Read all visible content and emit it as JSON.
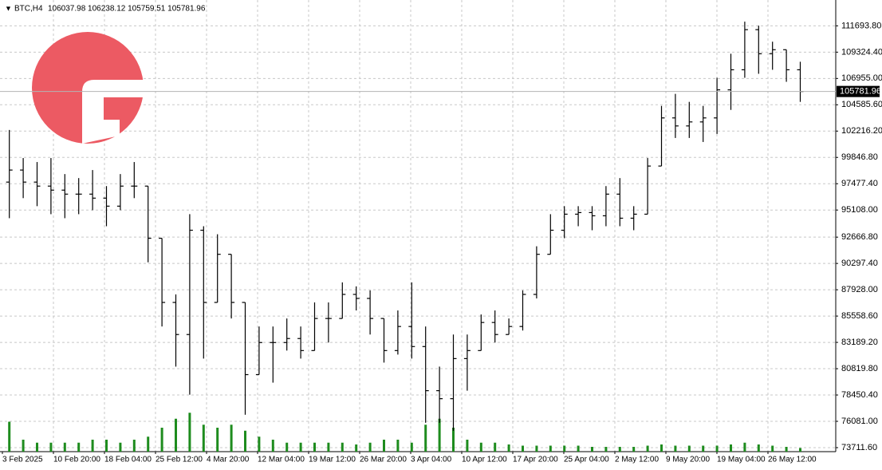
{
  "chart_data": {
    "type": "ohlc",
    "title": "BTC,H4",
    "ohlc_label": "106037.98 106238.12 105759.51 105781.96",
    "x_labels": [
      "3 Feb 2025",
      "10 Feb 20:00",
      "18 Feb 04:00",
      "25 Feb 12:00",
      "4 Mar 20:00",
      "12 Mar 04:00",
      "19 Mar 12:00",
      "26 Mar 20:00",
      "3 Apr 04:00",
      "10 Apr 12:00",
      "17 Apr 20:00",
      "25 Apr 04:00",
      "2 May 12:00",
      "9 May 20:00",
      "19 May 04:00",
      "26 May 12:00"
    ],
    "open": [
      97623,
      98707,
      97623,
      97262,
      96900,
      96539,
      96539,
      96178,
      95456,
      97262,
      97262,
      92566,
      86787,
      83897,
      93288,
      86787,
      91121,
      86787,
      80285,
      83175,
      83175,
      83536,
      82452,
      85342,
      85342,
      87510,
      87148,
      85342,
      82452,
      84620,
      82814,
      78840,
      78118,
      81730,
      82452,
      84981,
      83897,
      84620,
      87510,
      91121,
      93288,
      94733,
      94878,
      94589,
      96539,
      94372,
      94733,
      99068,
      103402,
      102680,
      103041,
      103402,
      105930,
      107737,
      111349,
      109181,
      109543,
      107737
    ],
    "high": [
      102318,
      99790,
      99429,
      99790,
      98345,
      97984,
      98707,
      97262,
      98345,
      99429,
      97262,
      92566,
      87510,
      94733,
      93650,
      92927,
      91121,
      86787,
      84620,
      84620,
      85342,
      84620,
      86787,
      86787,
      88593,
      88232,
      87871,
      85342,
      86064,
      88593,
      84620,
      81008,
      83897,
      83897,
      85703,
      86064,
      85342,
      87871,
      91844,
      94733,
      95456,
      95456,
      95456,
      97262,
      97984,
      95456,
      99790,
      104486,
      105569,
      104847,
      104486,
      107014,
      109181,
      112071,
      111710,
      110265,
      109543,
      108459
    ],
    "low": [
      94372,
      96178,
      95456,
      94733,
      94372,
      94733,
      95094,
      93650,
      95094,
      96178,
      90399,
      84620,
      81008,
      78479,
      81730,
      86787,
      85342,
      76673,
      80285,
      79563,
      82452,
      81730,
      82452,
      83175,
      85342,
      86064,
      83897,
      81369,
      82091,
      81730,
      75951,
      75951,
      75228,
      78840,
      82452,
      83175,
      83897,
      84258,
      87148,
      91121,
      92566,
      93650,
      93288,
      93650,
      93650,
      93288,
      94733,
      99068,
      101596,
      101596,
      101235,
      101957,
      104124,
      107014,
      107375,
      107737,
      106653,
      104847
    ],
    "close": [
      98707,
      97623,
      97262,
      96900,
      96539,
      96539,
      96178,
      95456,
      97262,
      97262,
      92566,
      86787,
      83897,
      93288,
      86787,
      91121,
      86787,
      80285,
      83175,
      83175,
      83536,
      82452,
      85342,
      85342,
      87510,
      87148,
      85342,
      82452,
      84620,
      82814,
      78840,
      78118,
      81730,
      82452,
      84981,
      83897,
      84620,
      87510,
      91121,
      93288,
      94733,
      94878,
      94589,
      96539,
      94372,
      94733,
      99068,
      103402,
      102680,
      103041,
      103402,
      105930,
      107737,
      111349,
      109181,
      109543,
      107737,
      105781.96
    ],
    "volume": [
      50,
      20,
      15,
      15,
      15,
      15,
      20,
      20,
      15,
      20,
      25,
      40,
      55,
      65,
      45,
      40,
      45,
      35,
      25,
      20,
      15,
      15,
      15,
      15,
      15,
      12,
      15,
      20,
      20,
      15,
      45,
      55,
      40,
      20,
      15,
      15,
      12,
      10,
      10,
      10,
      10,
      10,
      8,
      8,
      8,
      8,
      10,
      12,
      10,
      10,
      10,
      10,
      12,
      15,
      12,
      10,
      8,
      6
    ],
    "color": "#000000",
    "volume_color": "#1e8c1e",
    "last_price": 105781.96,
    "ylim": [
      73350,
      114020
    ],
    "yticks": [
      {
        "value": 111693.8,
        "label": "111693.80"
      },
      {
        "value": 109324.4,
        "label": "109324.40"
      },
      {
        "value": 106955,
        "label": "106955.00"
      },
      {
        "value": 104585.6,
        "label": "104585.60"
      },
      {
        "value": 102216.2,
        "label": "102216.20"
      },
      {
        "value": 99846.8,
        "label": "99846.80"
      },
      {
        "value": 97477.4,
        "label": "97477.40"
      },
      {
        "value": 95108,
        "label": "95108.00"
      },
      {
        "value": 92666.8,
        "label": "92666.80"
      },
      {
        "value": 90297.4,
        "label": "90297.40"
      },
      {
        "value": 87928,
        "label": "87928.00"
      },
      {
        "value": 85558.6,
        "label": "85558.60"
      },
      {
        "value": 83189.2,
        "label": "83189.20"
      },
      {
        "value": 80819.8,
        "label": "80819.80"
      },
      {
        "value": 78450.4,
        "label": "78450.40"
      },
      {
        "value": 76081,
        "label": "76081.00"
      },
      {
        "value": 73711.6,
        "label": "73711.60"
      }
    ],
    "grid": true
  }
}
